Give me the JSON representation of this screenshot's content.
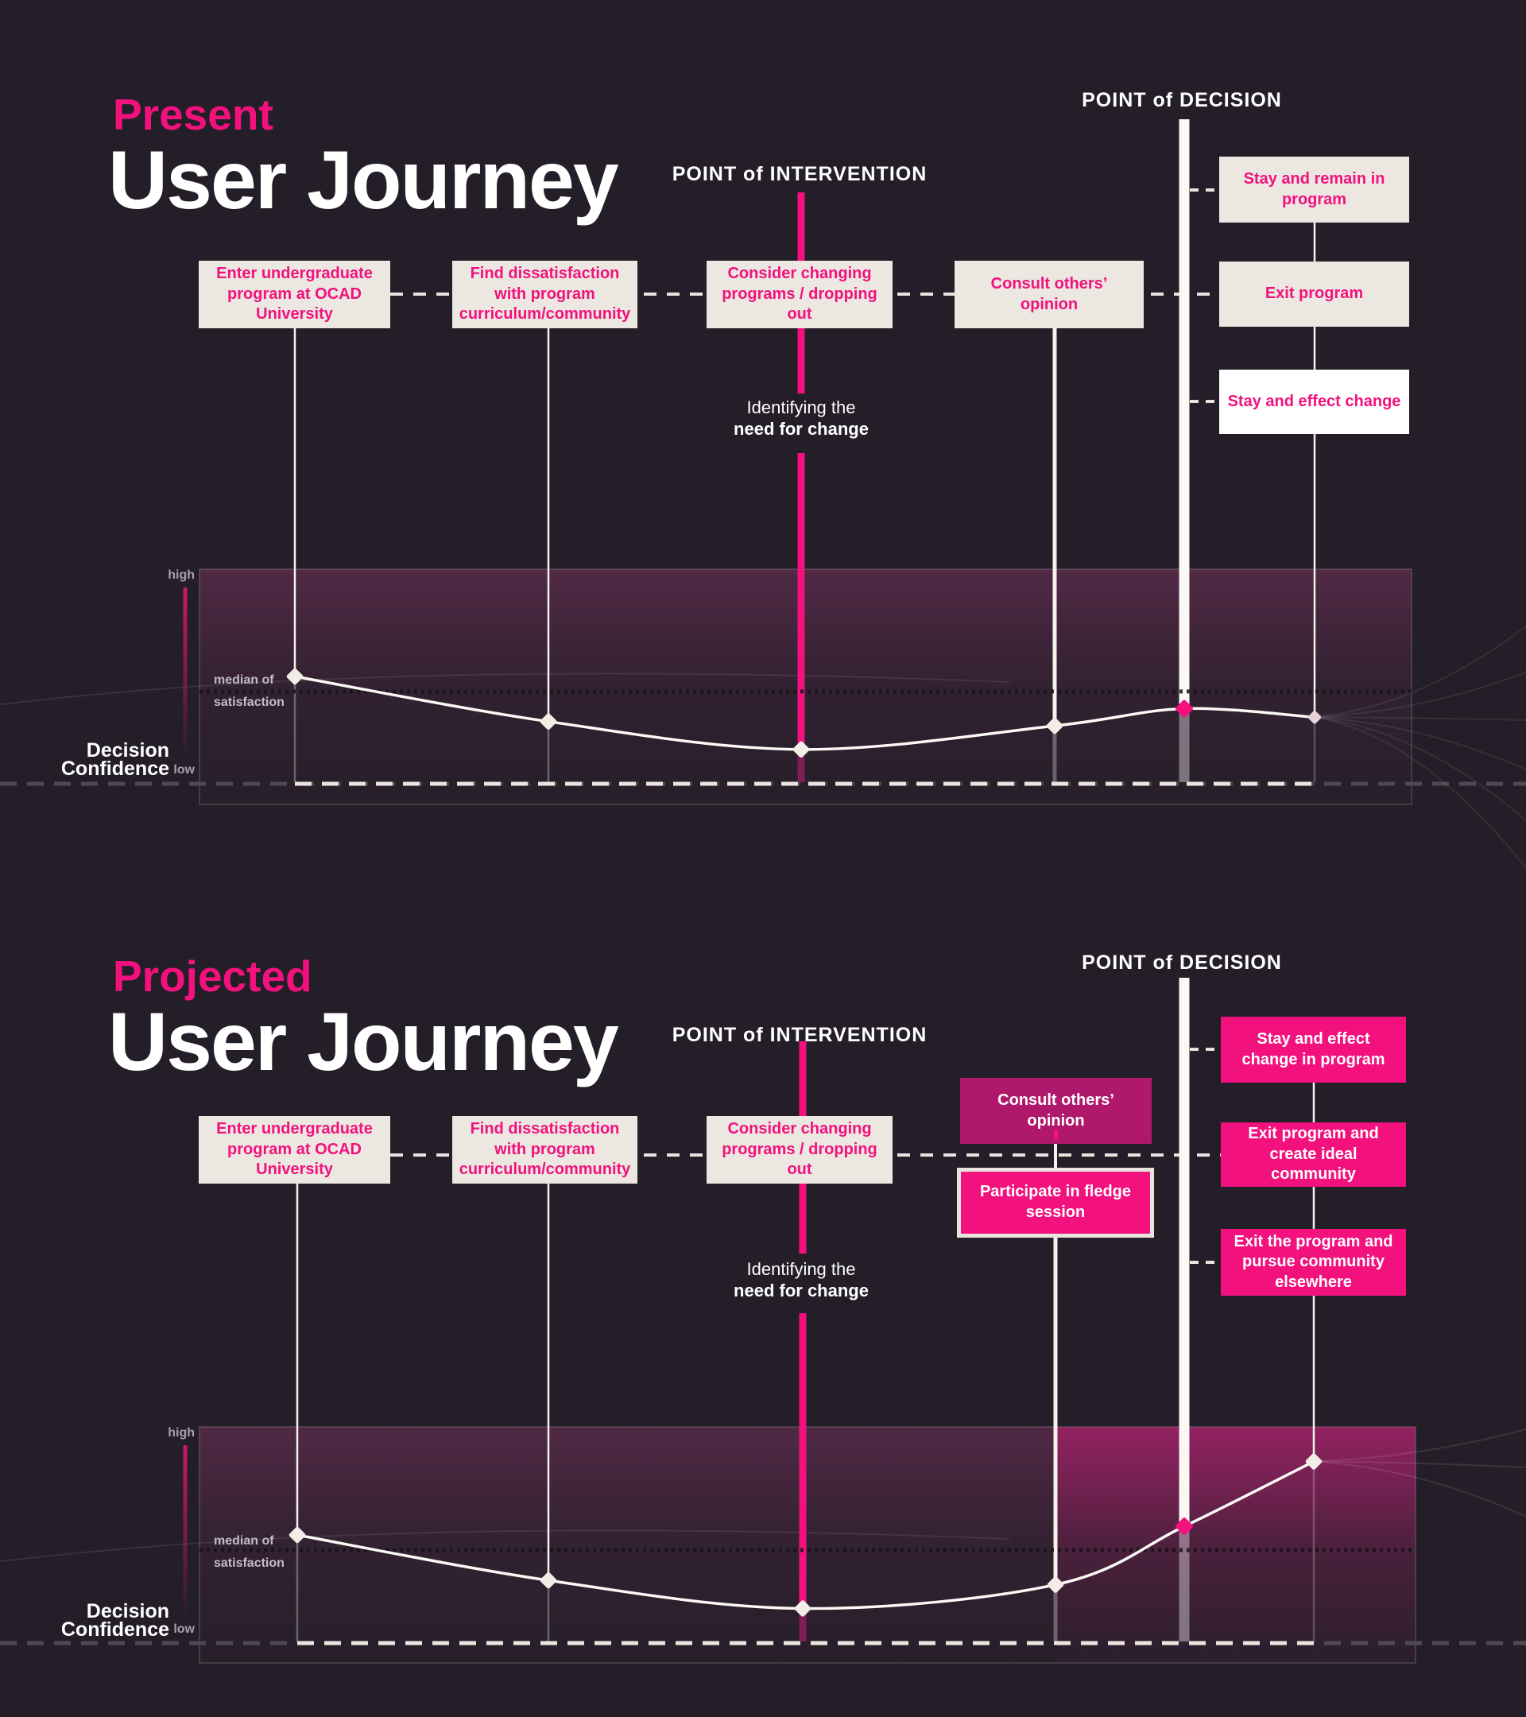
{
  "colors": {
    "background": "#241e28",
    "accent_pink": "#f2117d",
    "dark_magenta": "#b0186b",
    "cream_box": "#ece7e1",
    "white_box": "#ffffff",
    "curve": "#fcf9f5"
  },
  "sections": [
    {
      "id": "present",
      "accent_title": "Present",
      "main_title": "User Journey",
      "decision_label": "POINT of DECISION",
      "intervention_label": "POINT of INTERVENTION",
      "note_line1": "Identifying the",
      "note_line2": "need for change",
      "journey_boxes": [
        {
          "label": "Enter undergraduate program at OCAD University"
        },
        {
          "label": "Find dissatisfaction with program curriculum/community"
        },
        {
          "label": "Consider changing programs / dropping out"
        },
        {
          "label": "Consult others’ opinion"
        }
      ],
      "outcome_boxes": [
        {
          "label": "Stay and remain in program",
          "style": "cream"
        },
        {
          "label": "Exit program",
          "style": "cream"
        },
        {
          "label": "Stay and effect change",
          "style": "white"
        }
      ],
      "axis": {
        "high": "high",
        "low": "low",
        "median_line1": "median of",
        "median_line2": "satisfaction",
        "title_line1": "Decision",
        "title_line2": "Confidence"
      },
      "chart_data": {
        "type": "line",
        "ylabel": "Decision Confidence",
        "y_scale": "0 = low dashed baseline, 100 = top of shaded panel",
        "median_of_satisfaction": 43,
        "stages": [
          "Enter undergraduate program at OCAD University",
          "Find dissatisfaction with program curriculum/community",
          "Consider changing programs / dropping out (point of intervention)",
          "Consult others’ opinion",
          "Point of decision",
          "Outcome"
        ],
        "values": [
          50,
          29,
          16,
          27,
          35,
          31
        ],
        "markers": [
          "cream",
          "cream",
          "cream",
          "cream",
          "pink",
          "faded"
        ]
      }
    },
    {
      "id": "projected",
      "accent_title": "Projected",
      "main_title": "User Journey",
      "decision_label": "POINT of DECISION",
      "intervention_label": "POINT of INTERVENTION",
      "note_line1": "Identifying the",
      "note_line2": "need for change",
      "journey_boxes": [
        {
          "label": "Enter undergraduate program at OCAD University"
        },
        {
          "label": "Find dissatisfaction with program curriculum/community"
        },
        {
          "label": "Consider changing programs / dropping out"
        }
      ],
      "consult_box": {
        "label": "Consult others’ opinion"
      },
      "participate_box": {
        "label": "Participate in fledge session"
      },
      "outcome_boxes": [
        {
          "label": "Stay and effect change in program",
          "style": "pink"
        },
        {
          "label": "Exit program and create ideal community",
          "style": "pink"
        },
        {
          "label": "Exit the program and pursue community elsewhere",
          "style": "pink"
        }
      ],
      "axis": {
        "high": "high",
        "low": "low",
        "median_line1": "median of",
        "median_line2": "satisfaction",
        "title_line1": "Decision",
        "title_line2": "Confidence"
      },
      "chart_data": {
        "type": "line",
        "ylabel": "Decision Confidence",
        "y_scale": "0 = low dashed baseline, 100 = top of shaded panel",
        "median_of_satisfaction": 43,
        "stages": [
          "Enter undergraduate program at OCAD University",
          "Find dissatisfaction with program curriculum/community",
          "Consider changing programs / dropping out (point of intervention)",
          "Consult others’ opinion (participate in fledge session)",
          "Point of decision",
          "Outcome"
        ],
        "values": [
          50,
          29,
          16,
          27,
          54,
          84
        ],
        "markers": [
          "cream",
          "cream",
          "cream",
          "cream",
          "pink",
          "cream"
        ]
      }
    }
  ]
}
